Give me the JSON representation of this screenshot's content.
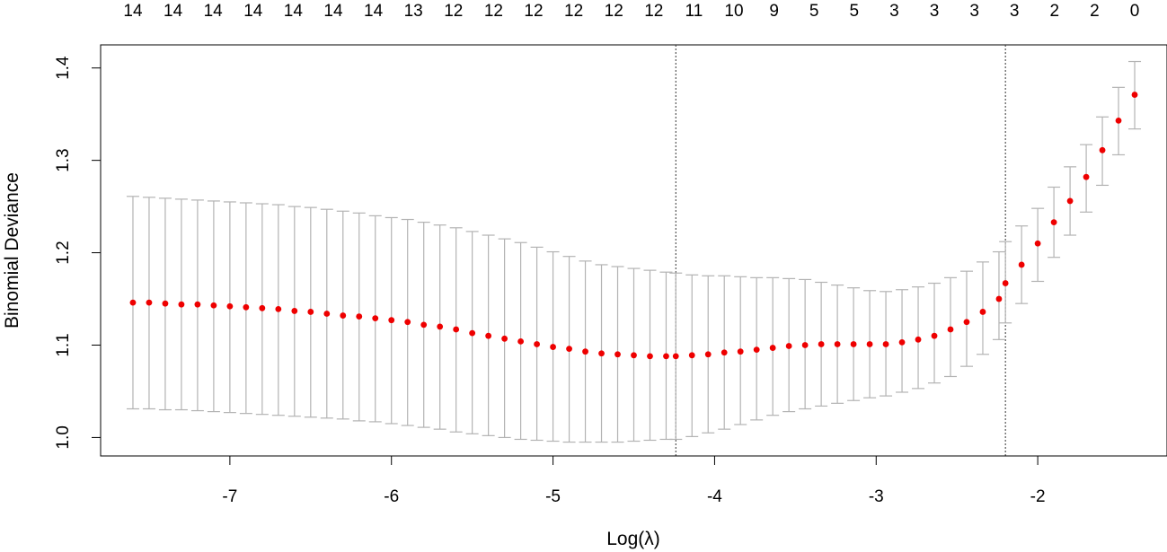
{
  "chart_data": {
    "type": "scatter",
    "title": "",
    "xlabel": "Log(λ)",
    "ylabel": "Binomial Deviance",
    "xlim": [
      -7.8,
      -1.2
    ],
    "ylim": [
      0.98,
      1.425
    ],
    "x_ticks": [
      -7,
      -6,
      -5,
      -4,
      -3,
      -2
    ],
    "x_tick_labels": [
      "-7",
      "-6",
      "-5",
      "-4",
      "-3",
      "-2"
    ],
    "y_ticks": [
      1.0,
      1.1,
      1.2,
      1.3,
      1.4
    ],
    "y_tick_labels": [
      "1.0",
      "1.1",
      "1.2",
      "1.3",
      "1.4"
    ],
    "top_labels": [
      "14",
      "14",
      "14",
      "14",
      "14",
      "14",
      "14",
      "13",
      "12",
      "12",
      "12",
      "12",
      "12",
      "12",
      "11",
      "10",
      "9",
      "5",
      "5",
      "3",
      "3",
      "3",
      "3",
      "2",
      "2",
      "0"
    ],
    "vlines": [
      -4.24,
      -2.2
    ],
    "x": [
      -7.6,
      -7.5,
      -7.4,
      -7.3,
      -7.2,
      -7.1,
      -7.0,
      -6.9,
      -6.8,
      -6.7,
      -6.6,
      -6.5,
      -6.4,
      -6.3,
      -6.2,
      -6.1,
      -6.0,
      -5.9,
      -5.8,
      -5.7,
      -5.6,
      -5.5,
      -5.4,
      -5.3,
      -5.2,
      -5.1,
      -5.0,
      -4.9,
      -4.8,
      -4.7,
      -4.6,
      -4.5,
      -4.4,
      -4.3,
      -4.24,
      -4.14,
      -4.04,
      -3.94,
      -3.84,
      -3.74,
      -3.64,
      -3.54,
      -3.44,
      -3.34,
      -3.24,
      -3.14,
      -3.04,
      -2.94,
      -2.84,
      -2.74,
      -2.64,
      -2.54,
      -2.44,
      -2.34,
      -2.24,
      -2.2,
      -2.1,
      -2.0,
      -1.9,
      -1.8,
      -1.7,
      -1.6,
      -1.5,
      -1.4
    ],
    "y": [
      1.146,
      1.146,
      1.145,
      1.144,
      1.144,
      1.143,
      1.142,
      1.141,
      1.14,
      1.139,
      1.137,
      1.136,
      1.134,
      1.132,
      1.131,
      1.129,
      1.127,
      1.125,
      1.122,
      1.12,
      1.117,
      1.113,
      1.11,
      1.107,
      1.104,
      1.101,
      1.098,
      1.096,
      1.093,
      1.091,
      1.09,
      1.089,
      1.088,
      1.088,
      1.088,
      1.089,
      1.09,
      1.092,
      1.093,
      1.095,
      1.097,
      1.099,
      1.1,
      1.101,
      1.101,
      1.101,
      1.101,
      1.101,
      1.103,
      1.106,
      1.11,
      1.117,
      1.125,
      1.136,
      1.15,
      1.167,
      1.187,
      1.21,
      1.233,
      1.256,
      1.282,
      1.311,
      1.343,
      1.371
    ],
    "lower": [
      1.031,
      1.031,
      1.03,
      1.03,
      1.029,
      1.028,
      1.027,
      1.026,
      1.025,
      1.024,
      1.023,
      1.022,
      1.021,
      1.02,
      1.018,
      1.017,
      1.015,
      1.013,
      1.011,
      1.009,
      1.006,
      1.004,
      1.002,
      1.0,
      0.998,
      0.997,
      0.996,
      0.995,
      0.995,
      0.995,
      0.995,
      0.996,
      0.997,
      0.998,
      0.998,
      1.001,
      1.005,
      1.009,
      1.014,
      1.019,
      1.024,
      1.028,
      1.031,
      1.034,
      1.037,
      1.04,
      1.043,
      1.045,
      1.049,
      1.053,
      1.059,
      1.066,
      1.077,
      1.09,
      1.106,
      1.124,
      1.145,
      1.169,
      1.195,
      1.219,
      1.244,
      1.273,
      1.306,
      1.334
    ],
    "upper": [
      1.261,
      1.26,
      1.259,
      1.258,
      1.257,
      1.256,
      1.255,
      1.254,
      1.253,
      1.252,
      1.25,
      1.249,
      1.247,
      1.245,
      1.243,
      1.24,
      1.238,
      1.236,
      1.233,
      1.23,
      1.227,
      1.223,
      1.219,
      1.215,
      1.211,
      1.206,
      1.201,
      1.196,
      1.191,
      1.187,
      1.185,
      1.183,
      1.181,
      1.179,
      1.178,
      1.176,
      1.175,
      1.175,
      1.174,
      1.173,
      1.173,
      1.172,
      1.171,
      1.168,
      1.165,
      1.162,
      1.159,
      1.158,
      1.16,
      1.163,
      1.167,
      1.173,
      1.18,
      1.19,
      1.201,
      1.212,
      1.229,
      1.248,
      1.271,
      1.293,
      1.317,
      1.347,
      1.379,
      1.407
    ],
    "colors": {
      "points": "#ee0000",
      "errorbars": "#b3b3b3",
      "vlines": "#333333",
      "axis": "#000000"
    }
  }
}
